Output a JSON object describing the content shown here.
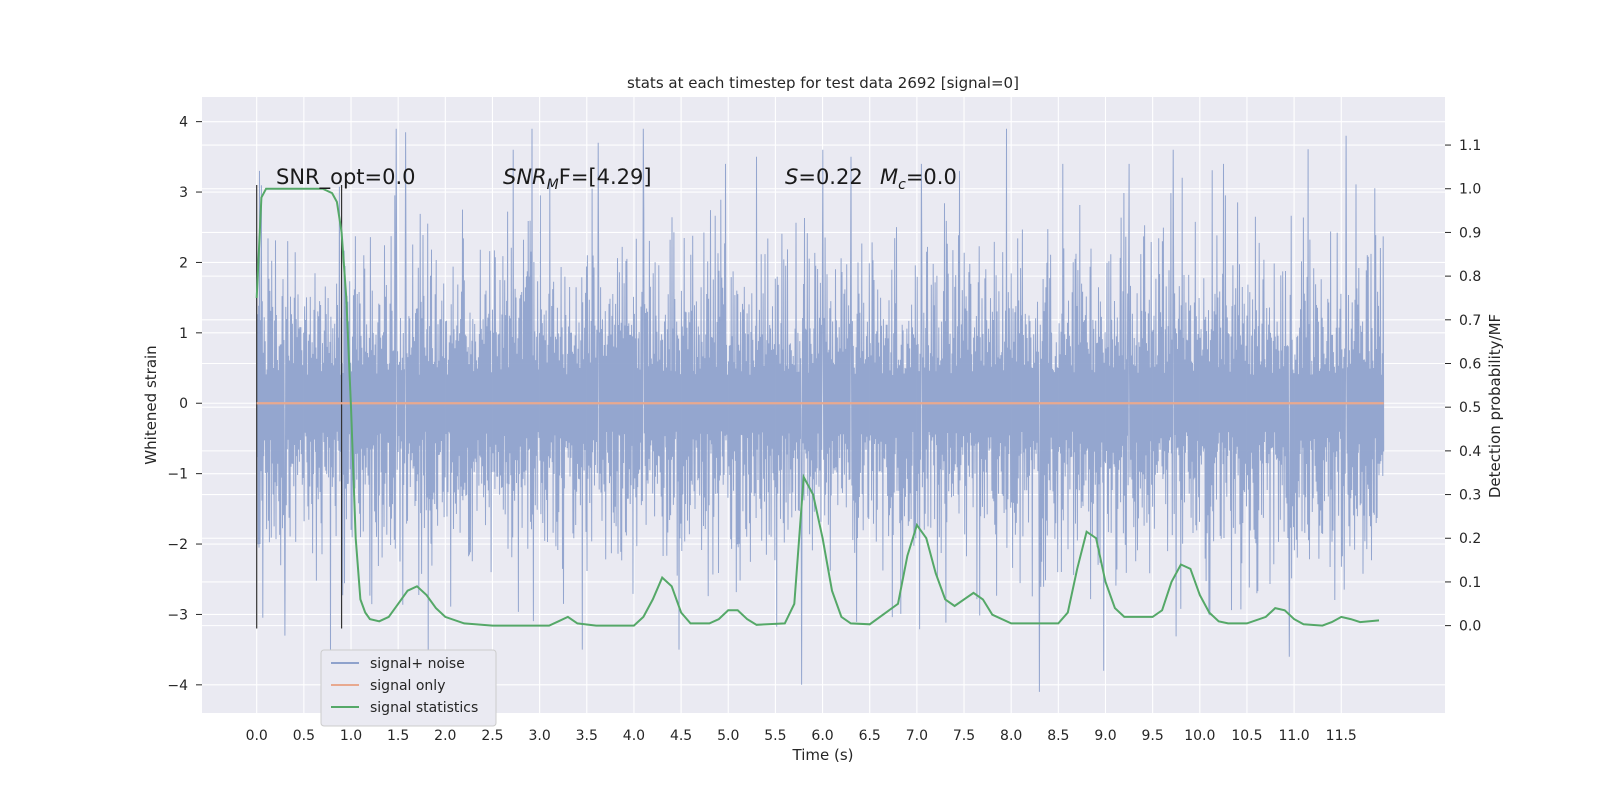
{
  "chart_data": {
    "type": "line",
    "title": "stats at each timestep for test data 2692 [signal=0]",
    "xlabel": "Time (s)",
    "ylabel": "Whitened strain",
    "ylabel_right": "Detection probability/MF",
    "xlim": [
      -0.58,
      12.6
    ],
    "ylim": [
      -4.4,
      4.35
    ],
    "ylim_right": [
      -0.2,
      1.21
    ],
    "x_ticks": [
      "0.0",
      "0.5",
      "1.0",
      "1.5",
      "2.0",
      "2.5",
      "3.0",
      "3.5",
      "4.0",
      "4.5",
      "5.0",
      "5.5",
      "6.0",
      "6.5",
      "7.0",
      "7.5",
      "8.0",
      "8.5",
      "9.0",
      "9.5",
      "10.0",
      "10.5",
      "11.0",
      "11.5"
    ],
    "y_ticks": [
      "4",
      "3",
      "2",
      "1",
      "0",
      "−1",
      "−2",
      "−3",
      "−4"
    ],
    "y_right_ticks": [
      "1.1",
      "1.0",
      "0.9",
      "0.8",
      "0.7",
      "0.6",
      "0.5",
      "0.4",
      "0.3",
      "0.2",
      "0.1",
      "0.0"
    ],
    "grid": true,
    "legend_position": "lower-left",
    "annotations": {
      "snr_opt": "SNR_opt=0.0",
      "snr_mf": "SNR",
      "snr_mf_sub": "M",
      "snr_mf_rest": "F=[4.29]",
      "s_label": "S",
      "s_value": "=0.22",
      "mc_label": "M",
      "mc_sub": "c",
      "mc_value": "=0.0"
    },
    "vertical_markers_x": [
      0.0,
      0.9
    ],
    "series": [
      {
        "name": "signal+ noise",
        "color": "#8fa2cc",
        "x_range": [
          0.0,
          11.95
        ],
        "envelope_typical": [
          -2.1,
          2.5
        ],
        "spikes": [
          [
            0.03,
            3.3
          ],
          [
            0.3,
            -3.3
          ],
          [
            0.78,
            -3.6
          ],
          [
            1.48,
            3.9
          ],
          [
            1.58,
            3.85
          ],
          [
            1.82,
            -3.6
          ],
          [
            2.72,
            3.6
          ],
          [
            2.92,
            3.9
          ],
          [
            3.45,
            -3.5
          ],
          [
            3.62,
            3.7
          ],
          [
            4.1,
            3.9
          ],
          [
            4.48,
            -3.5
          ],
          [
            4.97,
            3.4
          ],
          [
            5.3,
            3.5
          ],
          [
            5.78,
            -4.0
          ],
          [
            6.0,
            3.6
          ],
          [
            6.3,
            3.5
          ],
          [
            7.05,
            3.4
          ],
          [
            7.45,
            3.3
          ],
          [
            7.95,
            3.9
          ],
          [
            8.3,
            -4.1
          ],
          [
            8.55,
            3.4
          ],
          [
            8.98,
            -3.8
          ],
          [
            9.25,
            3.4
          ],
          [
            9.72,
            3.6
          ],
          [
            10.25,
            3.4
          ],
          [
            10.95,
            -3.6
          ],
          [
            11.55,
            3.8
          ]
        ]
      },
      {
        "name": "signal only",
        "color": "#e8a98f",
        "x": [
          0.0,
          11.95
        ],
        "y": [
          0.0,
          0.0
        ]
      },
      {
        "name": "signal statistics",
        "color": "#55a868",
        "axis": "right",
        "x": [
          0.0,
          0.05,
          0.1,
          0.15,
          0.25,
          0.4,
          0.55,
          0.7,
          0.8,
          0.85,
          0.9,
          0.95,
          1.0,
          1.05,
          1.1,
          1.15,
          1.2,
          1.3,
          1.4,
          1.5,
          1.6,
          1.7,
          1.8,
          1.9,
          2.0,
          2.2,
          2.5,
          2.8,
          3.1,
          3.2,
          3.3,
          3.4,
          3.6,
          4.0,
          4.1,
          4.2,
          4.3,
          4.4,
          4.5,
          4.6,
          4.8,
          4.9,
          5.0,
          5.1,
          5.2,
          5.3,
          5.6,
          5.7,
          5.8,
          5.85,
          5.9,
          6.0,
          6.1,
          6.2,
          6.3,
          6.5,
          6.8,
          6.9,
          7.0,
          7.1,
          7.2,
          7.3,
          7.4,
          7.5,
          7.6,
          7.7,
          7.8,
          8.0,
          8.5,
          8.6,
          8.7,
          8.8,
          8.9,
          9.0,
          9.1,
          9.2,
          9.5,
          9.6,
          9.7,
          9.8,
          9.9,
          10.0,
          10.1,
          10.2,
          10.3,
          10.5,
          10.7,
          10.8,
          10.9,
          11.0,
          11.1,
          11.3,
          11.4,
          11.5,
          11.6,
          11.7,
          11.8,
          11.9
        ],
        "y": [
          0.75,
          0.98,
          1.0,
          1.0,
          1.0,
          1.0,
          1.0,
          1.0,
          0.99,
          0.97,
          0.9,
          0.75,
          0.5,
          0.2,
          0.06,
          0.03,
          0.015,
          0.01,
          0.02,
          0.05,
          0.08,
          0.09,
          0.07,
          0.04,
          0.02,
          0.005,
          0.0,
          0.0,
          0.0,
          0.01,
          0.02,
          0.005,
          0.0,
          0.0,
          0.02,
          0.06,
          0.11,
          0.09,
          0.03,
          0.005,
          0.005,
          0.015,
          0.035,
          0.035,
          0.015,
          0.002,
          0.005,
          0.05,
          0.34,
          0.32,
          0.3,
          0.2,
          0.08,
          0.02,
          0.005,
          0.003,
          0.05,
          0.16,
          0.23,
          0.2,
          0.12,
          0.06,
          0.045,
          0.06,
          0.075,
          0.06,
          0.025,
          0.005,
          0.005,
          0.03,
          0.13,
          0.215,
          0.2,
          0.1,
          0.04,
          0.02,
          0.02,
          0.035,
          0.1,
          0.14,
          0.13,
          0.07,
          0.03,
          0.01,
          0.005,
          0.005,
          0.02,
          0.04,
          0.035,
          0.015,
          0.003,
          0.0,
          0.008,
          0.02,
          0.015,
          0.008,
          0.01,
          0.012
        ]
      }
    ]
  }
}
